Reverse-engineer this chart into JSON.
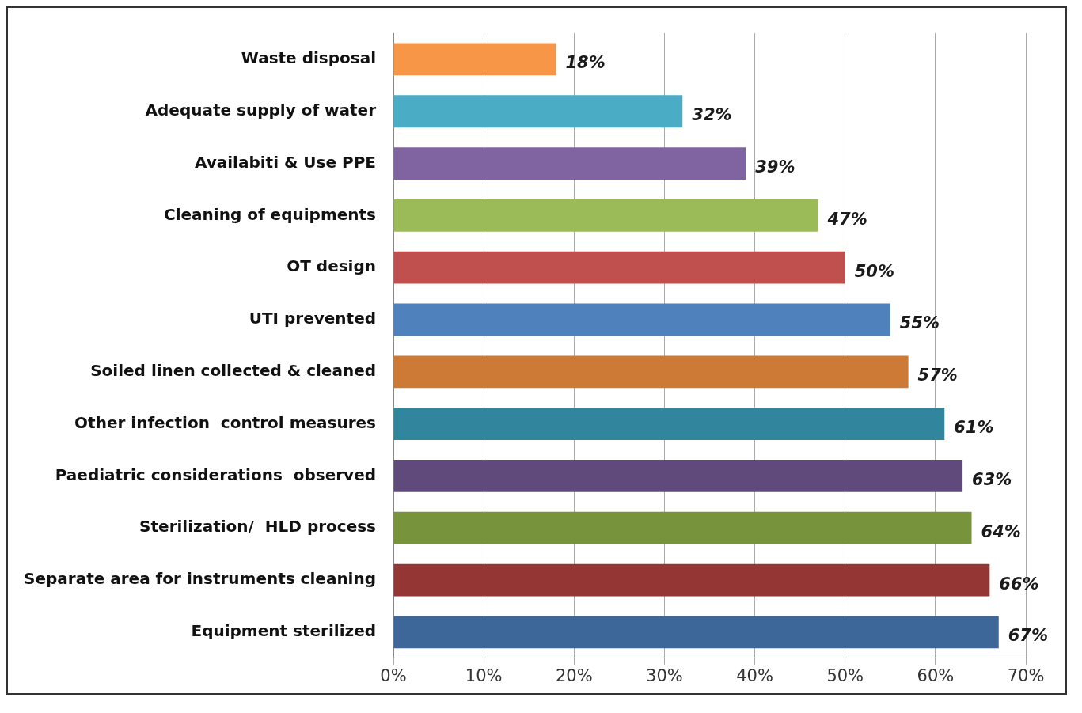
{
  "chart_data": {
    "type": "bar",
    "orientation": "horizontal",
    "categories": [
      "Waste disposal",
      "Adequate supply of water",
      "Availabiti & Use PPE",
      "Cleaning of equipments",
      "OT design",
      "UTI prevented",
      "Soiled linen collected & cleaned",
      "Other infection  control measures",
      "Paediatric considerations  observed",
      "Sterilization/  HLD process",
      "Separate area for instruments cleaning",
      "Equipment sterilized"
    ],
    "values": [
      18,
      32,
      39,
      47,
      50,
      55,
      57,
      61,
      63,
      64,
      66,
      67
    ],
    "colors": [
      "#f79646",
      "#4bacc6",
      "#8064a2",
      "#9bbb59",
      "#c0504d",
      "#4f81bd",
      "#cc7a35",
      "#31859c",
      "#604a7b",
      "#77933c",
      "#943634",
      "#3d6699"
    ],
    "xlim": [
      0,
      70
    ],
    "xticks": [
      {
        "value": 0,
        "label": "0%"
      },
      {
        "value": 10,
        "label": "10%"
      },
      {
        "value": 20,
        "label": "20%"
      },
      {
        "value": 30,
        "label": "30%"
      },
      {
        "value": 40,
        "label": "40%"
      },
      {
        "value": 50,
        "label": "50%"
      },
      {
        "value": 60,
        "label": "60%"
      },
      {
        "value": 70,
        "label": "70%"
      }
    ],
    "value_labels": [
      "18%",
      "32%",
      "39%",
      "47%",
      "50%",
      "55%",
      "57%",
      "61%",
      "63%",
      "64%",
      "66%",
      "67%"
    ],
    "grid": "x",
    "legend": false
  }
}
